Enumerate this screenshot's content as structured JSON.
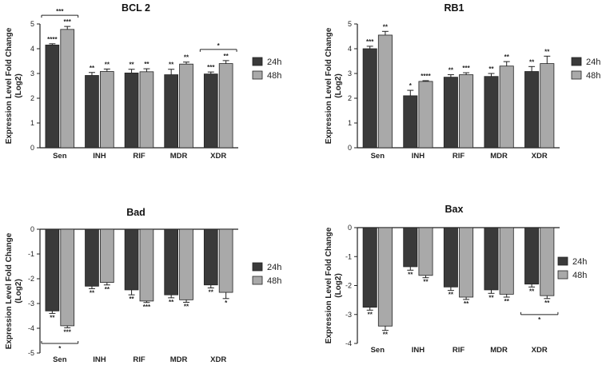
{
  "chart_data": [
    {
      "type": "bar",
      "title": "BCL 2",
      "ylabel": "Expression Level Fold Change (Log2)",
      "ylim": [
        0,
        5
      ],
      "yticks": [
        0,
        1,
        2,
        3,
        4,
        5
      ],
      "categories": [
        "Sen",
        "INH",
        "RIF",
        "MDR",
        "XDR"
      ],
      "series": [
        {
          "name": "24h",
          "color": "#3a3a3a",
          "values": [
            4.15,
            2.92,
            3.02,
            2.95,
            2.98
          ],
          "errors": [
            0.05,
            0.12,
            0.15,
            0.22,
            0.08
          ],
          "stars": [
            "****",
            "**",
            "**",
            "**",
            "***"
          ]
        },
        {
          "name": "48h",
          "color": "#a9a9a9",
          "values": [
            4.78,
            3.08,
            3.07,
            3.38,
            3.4
          ],
          "errors": [
            0.12,
            0.1,
            0.12,
            0.08,
            0.12
          ],
          "stars": [
            "***",
            "**",
            "**",
            "**",
            "**"
          ]
        }
      ],
      "brackets": [
        {
          "category": "Sen",
          "label": "***",
          "above": true
        },
        {
          "category": "XDR",
          "label": "*",
          "above": true
        }
      ]
    },
    {
      "type": "bar",
      "title": "RB1",
      "ylabel": "Expression Level Fold Change (Log2)",
      "ylim": [
        0,
        5
      ],
      "yticks": [
        0,
        1,
        2,
        3,
        4,
        5
      ],
      "categories": [
        "Sen",
        "INH",
        "RIF",
        "MDR",
        "XDR"
      ],
      "series": [
        {
          "name": "24h",
          "color": "#3a3a3a",
          "values": [
            4.0,
            2.1,
            2.85,
            2.88,
            3.08
          ],
          "errors": [
            0.1,
            0.22,
            0.1,
            0.12,
            0.2
          ],
          "stars": [
            "***",
            "*",
            "**",
            "**",
            "**"
          ]
        },
        {
          "name": "48h",
          "color": "#a9a9a9",
          "values": [
            4.55,
            2.68,
            2.95,
            3.3,
            3.4
          ],
          "errors": [
            0.15,
            0.03,
            0.08,
            0.18,
            0.3
          ],
          "stars": [
            "**",
            "****",
            "***",
            "**",
            "**"
          ]
        }
      ],
      "brackets": []
    },
    {
      "type": "bar",
      "title": "Bad",
      "ylabel": "Expression Level Fold Change (Log2)",
      "ylim": [
        -5,
        0
      ],
      "yticks": [
        0,
        -1,
        -2,
        -3,
        -4,
        -5
      ],
      "categories": [
        "Sen",
        "INH",
        "RIF",
        "MDR",
        "XDR"
      ],
      "series": [
        {
          "name": "24h",
          "color": "#3a3a3a",
          "values": [
            -3.3,
            -2.3,
            -2.45,
            -2.65,
            -2.25
          ],
          "errors": [
            0.1,
            0.1,
            0.2,
            0.12,
            0.12
          ],
          "stars": [
            "**",
            "**",
            "**",
            "**",
            "**"
          ]
        },
        {
          "name": "48h",
          "color": "#a9a9a9",
          "values": [
            -3.9,
            -2.15,
            -2.9,
            -2.85,
            -2.55
          ],
          "errors": [
            0.08,
            0.1,
            0.06,
            0.1,
            0.25
          ],
          "stars": [
            "***",
            "**",
            "***",
            "**",
            "*"
          ]
        }
      ],
      "brackets": [
        {
          "category": "Sen",
          "label": "*",
          "above": false
        }
      ]
    },
    {
      "type": "bar",
      "title": "Bax",
      "ylabel": "Expression Level Fold Change (Log2)",
      "ylim": [
        -4,
        0
      ],
      "yticks": [
        0,
        -1,
        -2,
        -3,
        -4
      ],
      "categories": [
        "Sen",
        "INH",
        "RIF",
        "MDR",
        "XDR"
      ],
      "series": [
        {
          "name": "24h",
          "color": "#3a3a3a",
          "values": [
            -2.75,
            -1.35,
            -2.05,
            -2.15,
            -1.95
          ],
          "errors": [
            0.1,
            0.12,
            0.12,
            0.12,
            0.1
          ],
          "stars": [
            "**",
            "**",
            "**",
            "**",
            "**"
          ]
        },
        {
          "name": "48h",
          "color": "#a9a9a9",
          "values": [
            -3.4,
            -1.65,
            -2.4,
            -2.3,
            -2.35
          ],
          "errors": [
            0.15,
            0.08,
            0.08,
            0.1,
            0.1
          ],
          "stars": [
            "**",
            "**",
            "**",
            "**",
            "**"
          ]
        }
      ],
      "brackets": [
        {
          "category": "XDR",
          "label": "*",
          "above": false
        }
      ]
    }
  ],
  "legend": {
    "items": [
      "24h",
      "48h"
    ]
  }
}
